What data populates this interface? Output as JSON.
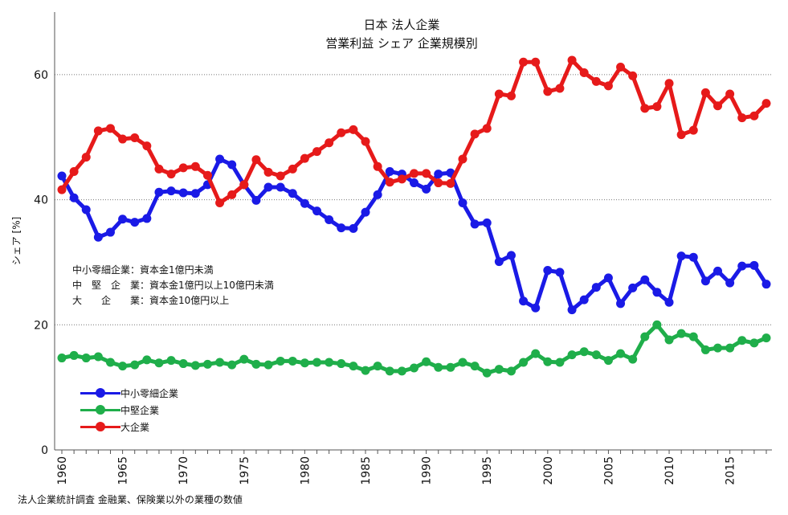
{
  "chart_data": {
    "type": "line",
    "title": "日本 法人企業",
    "subtitle": "営業利益 シェア 企業規模別",
    "ylabel": "シェア [%]",
    "xlabel": "",
    "ylim": [
      0,
      70
    ],
    "xlim": [
      1960,
      2018
    ],
    "yticks": [
      0,
      20,
      40,
      60
    ],
    "xticks": [
      1960,
      1965,
      1970,
      1975,
      1980,
      1985,
      1990,
      1995,
      2000,
      2005,
      2010,
      2015
    ],
    "grid": "horizontal dotted",
    "legend_position": "bottom-left",
    "x": [
      1960,
      1961,
      1962,
      1963,
      1964,
      1965,
      1966,
      1967,
      1968,
      1969,
      1970,
      1971,
      1972,
      1973,
      1974,
      1975,
      1976,
      1977,
      1978,
      1979,
      1980,
      1981,
      1982,
      1983,
      1984,
      1985,
      1986,
      1987,
      1988,
      1989,
      1990,
      1991,
      1992,
      1993,
      1994,
      1995,
      1996,
      1997,
      1998,
      1999,
      2000,
      2001,
      2002,
      2003,
      2004,
      2005,
      2006,
      2007,
      2008,
      2009,
      2010,
      2011,
      2012,
      2013,
      2014,
      2015,
      2016,
      2017,
      2018
    ],
    "series": [
      {
        "name": "中小零細企業",
        "color": "#1a1ae6",
        "values": [
          43.8,
          40.3,
          38.4,
          34.0,
          34.8,
          36.9,
          36.4,
          37.0,
          41.2,
          41.4,
          41.1,
          41.0,
          42.4,
          46.5,
          45.6,
          42.4,
          39.9,
          42.0,
          42.0,
          41.0,
          39.4,
          38.2,
          36.8,
          35.5,
          35.4,
          38.0,
          40.8,
          44.5,
          44.1,
          42.7,
          41.7,
          44.1,
          44.3,
          39.5,
          36.1,
          36.3,
          30.1,
          31.1,
          23.8,
          22.7,
          28.7,
          28.4,
          22.4,
          24.0,
          26.0,
          27.5,
          23.4,
          25.9,
          27.2,
          25.2,
          23.6,
          31.0,
          30.8,
          27.0,
          28.6,
          26.7,
          29.4,
          29.5,
          26.5
        ]
      },
      {
        "name": "中堅企業",
        "color": "#1fae4a",
        "values": [
          14.7,
          15.1,
          14.7,
          14.9,
          14.0,
          13.4,
          13.6,
          14.4,
          13.9,
          14.3,
          13.8,
          13.5,
          13.7,
          14.0,
          13.6,
          14.5,
          13.7,
          13.6,
          14.2,
          14.2,
          13.9,
          14.0,
          14.0,
          13.8,
          13.4,
          12.7,
          13.4,
          12.6,
          12.6,
          13.1,
          14.1,
          13.2,
          13.2,
          14.0,
          13.4,
          12.3,
          12.9,
          12.6,
          14.0,
          15.4,
          14.1,
          14.0,
          15.2,
          15.7,
          15.2,
          14.3,
          15.4,
          14.5,
          18.1,
          20.0,
          17.6,
          18.6,
          18.1,
          16.0,
          16.3,
          16.3,
          17.5,
          17.1,
          17.9
        ]
      },
      {
        "name": "大企業",
        "color": "#e61a1a",
        "values": [
          41.6,
          44.5,
          46.8,
          51.0,
          51.4,
          49.7,
          49.9,
          48.6,
          44.9,
          44.1,
          45.1,
          45.3,
          43.9,
          39.5,
          40.8,
          42.4,
          46.4,
          44.4,
          43.8,
          44.9,
          46.6,
          47.7,
          49.1,
          50.7,
          51.2,
          49.3,
          45.3,
          42.8,
          43.3,
          44.2,
          44.2,
          42.7,
          42.6,
          46.5,
          50.5,
          51.4,
          56.9,
          56.6,
          62.0,
          62.0,
          57.3,
          57.8,
          62.3,
          60.3,
          58.9,
          58.2,
          61.2,
          59.8,
          54.6,
          54.9,
          58.6,
          50.4,
          51.1,
          57.1,
          55.0,
          56.9,
          53.1,
          53.4,
          55.4
        ]
      }
    ]
  },
  "notes": [
    "中小零細企業：資本金1億円未満",
    "中　堅　企　業：資本金1億円以上10億円未満",
    "大　　企　　業：資本金10億円以上"
  ],
  "source": "法人企業統計調査 金融業、保険業以外の業種の数値"
}
